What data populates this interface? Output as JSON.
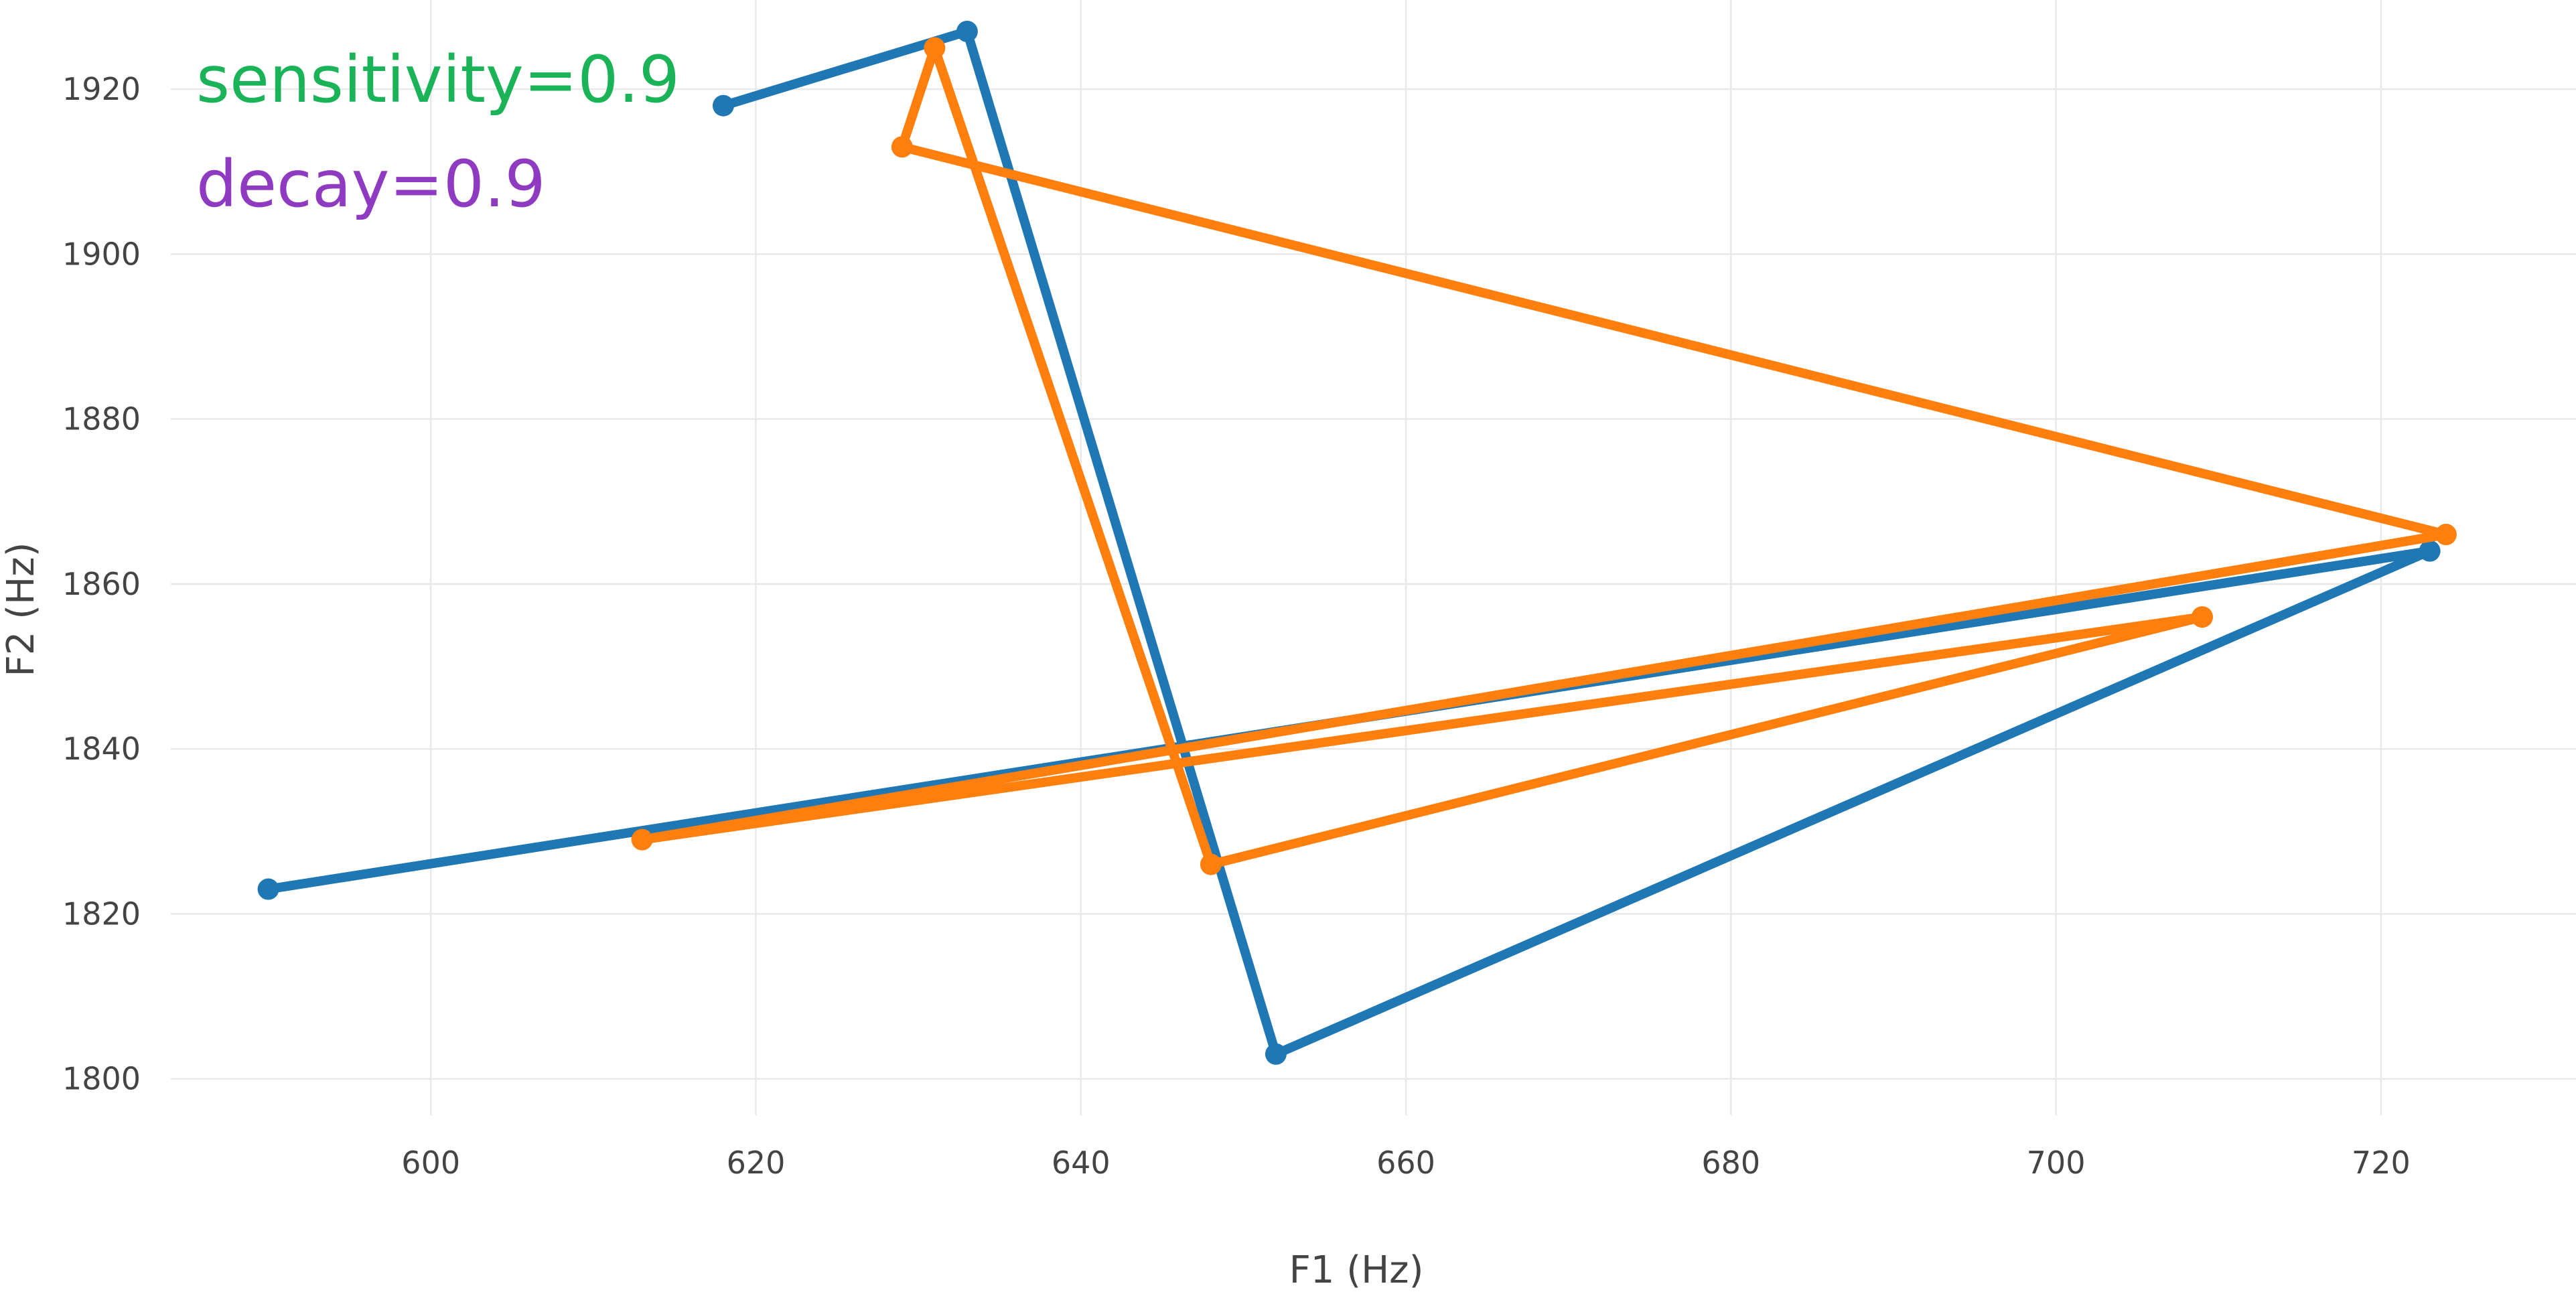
{
  "chart_data": {
    "type": "line",
    "title": "",
    "xlabel": "F1 (Hz)",
    "ylabel": "F2 (Hz)",
    "xlim": [
      584,
      732
    ],
    "ylim": [
      1796,
      1930
    ],
    "xticks": [
      600,
      620,
      640,
      660,
      680,
      700,
      720
    ],
    "yticks": [
      1800,
      1820,
      1840,
      1860,
      1880,
      1900,
      1920
    ],
    "grid": true,
    "legend": "none",
    "annotations": [
      {
        "text": "sensitivity=0.9",
        "color": "#1ab358"
      },
      {
        "text": "decay=0.9",
        "color": "#8e3bc2"
      }
    ],
    "series": [
      {
        "color": "#1f77b4",
        "points": [
          [
            618,
            1918
          ],
          [
            633,
            1927
          ],
          [
            652,
            1803
          ],
          [
            723,
            1864
          ],
          [
            590,
            1823
          ]
        ]
      },
      {
        "color": "#ff7f0e",
        "points": [
          [
            709,
            1856
          ],
          [
            613,
            1829
          ],
          [
            724,
            1866
          ],
          [
            629,
            1913
          ],
          [
            631,
            1925
          ],
          [
            648,
            1826
          ],
          [
            709,
            1856
          ]
        ]
      }
    ]
  }
}
